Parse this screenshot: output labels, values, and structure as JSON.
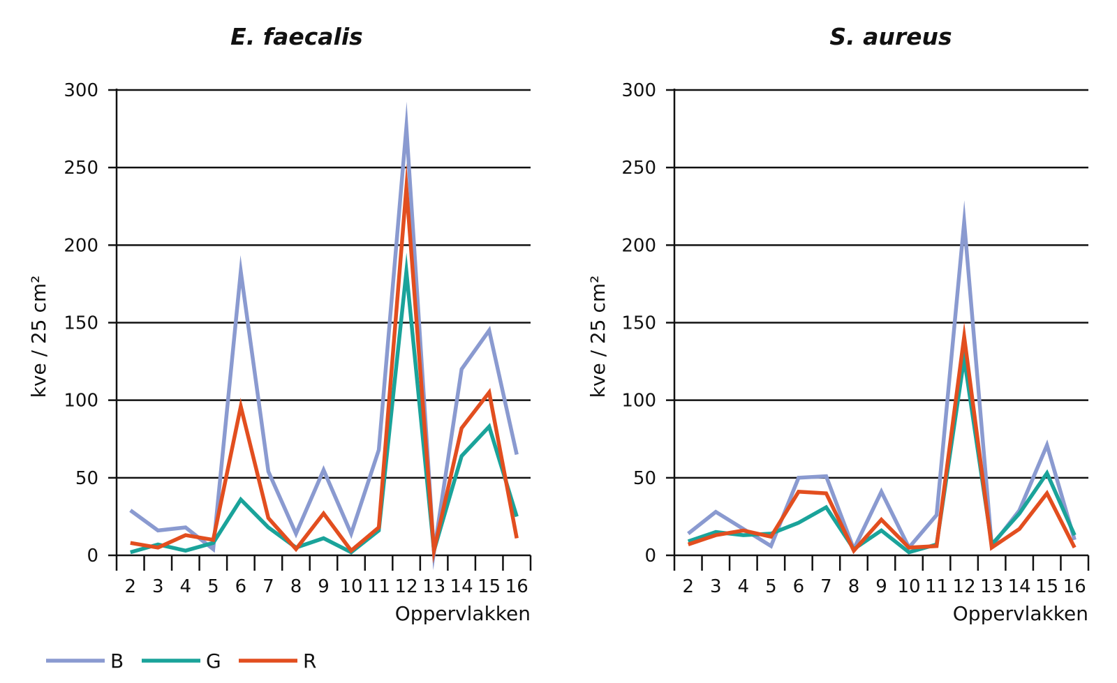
{
  "chart_data": [
    {
      "type": "line",
      "title": "E. faecalis",
      "xlabel": "Oppervlakken",
      "ylabel": "kve / 25 cm²",
      "ylim": [
        0,
        300
      ],
      "yticks": [
        "0",
        "50",
        "100",
        "150",
        "200",
        "250",
        "300"
      ],
      "categories": [
        "2",
        "3",
        "4",
        "5",
        "6",
        "7",
        "8",
        "9",
        "10",
        "11",
        "12",
        "13",
        "14",
        "15",
        "16"
      ],
      "grid": true,
      "series": [
        {
          "name": "B",
          "color": "#8a9ad0",
          "values": [
            29,
            16,
            18,
            4,
            183,
            54,
            14,
            55,
            14,
            68,
            276,
            2,
            120,
            145,
            65
          ]
        },
        {
          "name": "G",
          "color": "#1aa39a",
          "values": [
            2,
            7,
            3,
            8,
            36,
            18,
            5,
            11,
            2,
            16,
            183,
            3,
            64,
            83,
            25
          ]
        },
        {
          "name": "R",
          "color": "#e24e1f",
          "values": [
            8,
            5,
            13,
            10,
            96,
            24,
            4,
            27,
            3,
            18,
            237,
            3,
            82,
            105,
            11
          ]
        }
      ]
    },
    {
      "type": "line",
      "title": "S. aureus",
      "xlabel": "Oppervlakken",
      "ylabel": "kve / 25 cm²",
      "ylim": [
        0,
        300
      ],
      "yticks": [
        "0",
        "50",
        "100",
        "150",
        "200",
        "250",
        "300"
      ],
      "categories": [
        "2",
        "3",
        "4",
        "5",
        "6",
        "7",
        "8",
        "9",
        "10",
        "11",
        "12",
        "13",
        "14",
        "15",
        "16"
      ],
      "grid": true,
      "series": [
        {
          "name": "B",
          "color": "#8a9ad0",
          "values": [
            14,
            28,
            17,
            6,
            50,
            51,
            4,
            41,
            5,
            26,
            215,
            6,
            29,
            71,
            10
          ]
        },
        {
          "name": "G",
          "color": "#1aa39a",
          "values": [
            9,
            15,
            13,
            14,
            21,
            31,
            4,
            16,
            2,
            7,
            127,
            7,
            27,
            53,
            13
          ]
        },
        {
          "name": "R",
          "color": "#e24e1f",
          "values": [
            7,
            13,
            16,
            12,
            41,
            40,
            3,
            23,
            5,
            6,
            141,
            5,
            17,
            40,
            5
          ]
        }
      ]
    }
  ],
  "legend": [
    {
      "label": "B",
      "color": "#8a9ad0"
    },
    {
      "label": "G",
      "color": "#1aa39a"
    },
    {
      "label": "R",
      "color": "#e24e1f"
    }
  ]
}
